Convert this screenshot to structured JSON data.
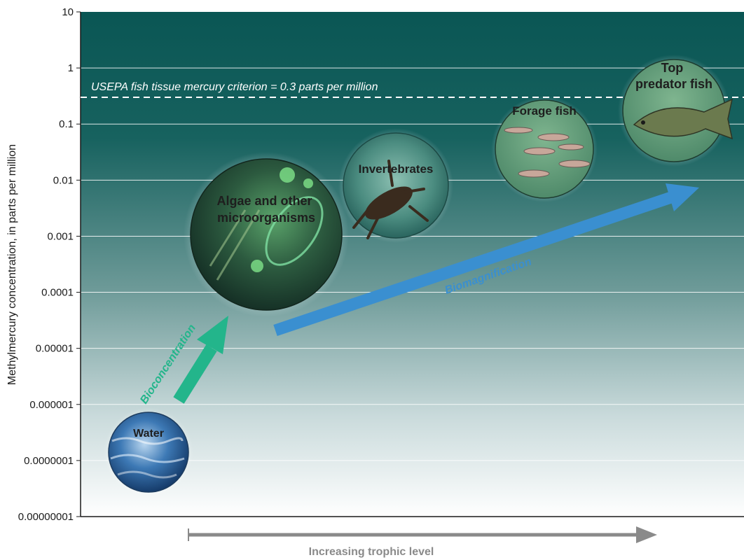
{
  "chart_data": {
    "type": "scatter",
    "ylabel": "Methylmercury concentration, in parts per million",
    "xlabel": "Increasing trophic level",
    "y_scale": "log",
    "ylim": [
      1e-08,
      10
    ],
    "y_ticks": [
      "10",
      "1",
      "0.1",
      "0.01",
      "0.001",
      "0.0001",
      "0.00001",
      "0.000001",
      "0.0000001",
      "0.00000001"
    ],
    "grid": true,
    "reference_line": {
      "label": "USEPA fish tissue mercury criterion = 0.3 parts per million",
      "value": 0.3,
      "style": "dashed"
    },
    "points": [
      {
        "label": "Water",
        "trophic_rank": 1,
        "y": 2.5e-07,
        "color": "#2a5d98"
      },
      {
        "label": "Algae and other microorganisms",
        "trophic_rank": 2,
        "y": 0.0004,
        "color": "#3b6b4c"
      },
      {
        "label": "Invertebrates",
        "trophic_rank": 3,
        "y": 0.015,
        "color": "#4f8f86"
      },
      {
        "label": "Forage fish",
        "trophic_rank": 4,
        "y": 0.08,
        "color": "#5d9a7c"
      },
      {
        "label": "Top predator fish",
        "trophic_rank": 5,
        "y": 0.4,
        "color": "#6ea384"
      }
    ],
    "arrows": [
      {
        "label": "Bioconcentration",
        "color": "#22b58a"
      },
      {
        "label": "Biomagnification",
        "color": "#3a8fd0"
      }
    ],
    "background_gradient": [
      "#0b5957",
      "#ffffff"
    ]
  }
}
